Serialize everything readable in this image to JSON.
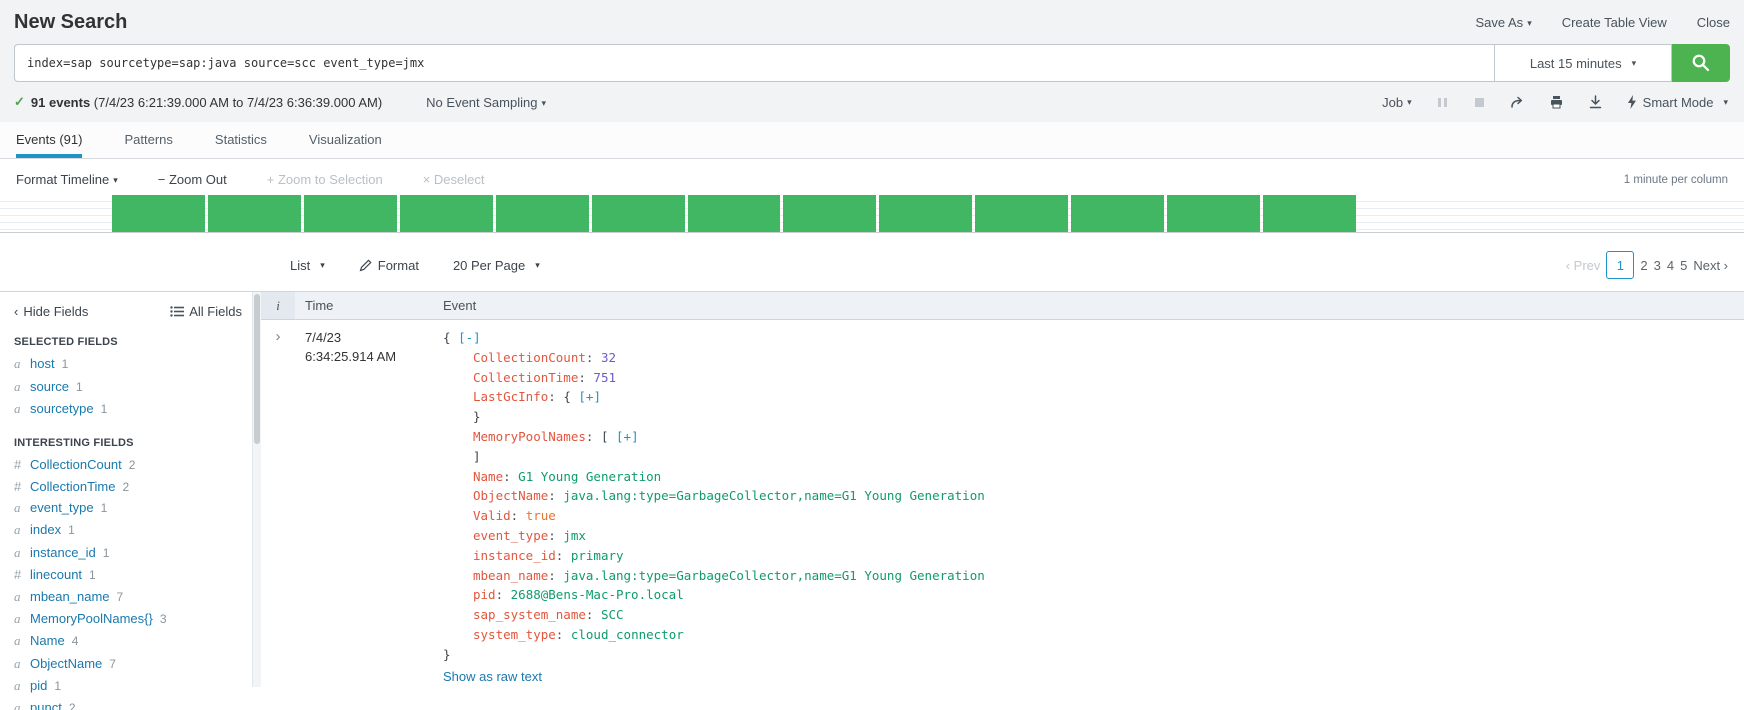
{
  "icons": {
    "caret": "▾",
    "check": "✓",
    "prev_chevron": "‹",
    "expand_chevron": "›",
    "hide_chevron": "‹"
  },
  "header": {
    "title": "New Search",
    "save_as": "Save As",
    "create_table_view": "Create Table View",
    "close": "Close"
  },
  "search_bar": {
    "query": "index=sap sourcetype=sap:java source=scc event_type=jmx",
    "time_range": "Last 15 minutes"
  },
  "job_bar": {
    "events_summary": "91 events",
    "time_span": "(7/4/23 6:21:39.000 AM to 7/4/23 6:36:39.000 AM)",
    "sampling": "No Event Sampling",
    "job_label": "Job",
    "smart_mode": "Smart Mode"
  },
  "tabs": {
    "events": "Events (91)",
    "patterns": "Patterns",
    "statistics": "Statistics",
    "visualization": "Visualization"
  },
  "timeline": {
    "format_label": "Format Timeline",
    "zoom_out": "− Zoom Out",
    "zoom_to_selection": "+ Zoom to Selection",
    "deselect": "× Deselect",
    "scale_label": "1 minute per column",
    "columns": 13,
    "bar_color": "#41b663"
  },
  "results_toolbar": {
    "list_label": "List",
    "format_label": "Format",
    "per_page_label": "20 Per Page"
  },
  "pagination": {
    "prev": "‹ Prev",
    "pages": [
      "1",
      "2",
      "3",
      "4",
      "5"
    ],
    "next": "Next ›"
  },
  "fields_sidebar": {
    "hide_fields": "Hide Fields",
    "all_fields": "All Fields",
    "selected_title": "SELECTED FIELDS",
    "selected": [
      {
        "type": "a",
        "name": "host",
        "count": "1"
      },
      {
        "type": "a",
        "name": "source",
        "count": "1"
      },
      {
        "type": "a",
        "name": "sourcetype",
        "count": "1"
      }
    ],
    "interesting_title": "INTERESTING FIELDS",
    "interesting": [
      {
        "type": "#",
        "name": "CollectionCount",
        "count": "2"
      },
      {
        "type": "#",
        "name": "CollectionTime",
        "count": "2"
      },
      {
        "type": "a",
        "name": "event_type",
        "count": "1"
      },
      {
        "type": "a",
        "name": "index",
        "count": "1"
      },
      {
        "type": "a",
        "name": "instance_id",
        "count": "1"
      },
      {
        "type": "#",
        "name": "linecount",
        "count": "1"
      },
      {
        "type": "a",
        "name": "mbean_name",
        "count": "7"
      },
      {
        "type": "a",
        "name": "MemoryPoolNames{}",
        "count": "3"
      },
      {
        "type": "a",
        "name": "Name",
        "count": "4"
      },
      {
        "type": "a",
        "name": "ObjectName",
        "count": "7"
      },
      {
        "type": "a",
        "name": "pid",
        "count": "1"
      },
      {
        "type": "a",
        "name": "punct",
        "count": "2"
      }
    ]
  },
  "events_table": {
    "columns": {
      "info": "i",
      "time": "Time",
      "event": "Event"
    },
    "row": {
      "date": "7/4/23",
      "time": "6:34:25.914 AM"
    },
    "json_lines": [
      {
        "open": "{ ",
        "toggle": "[-]"
      },
      {
        "key": "CollectionCount",
        "value": "32"
      },
      {
        "key": "CollectionTime",
        "value": "751"
      },
      {
        "key": "LastGcInfo",
        "open": "{ ",
        "toggle": "[+]"
      },
      {
        "close": "}"
      },
      {
        "key": "MemoryPoolNames",
        "open": "[ ",
        "toggle": "[+]"
      },
      {
        "close": "]"
      },
      {
        "key": "Name",
        "value": "G1 Young Generation"
      },
      {
        "key": "ObjectName",
        "value": "java.lang:type=GarbageCollector,name=G1 Young Generation"
      },
      {
        "key": "Valid",
        "value": "true"
      },
      {
        "key": "event_type",
        "value": "jmx"
      },
      {
        "key": "instance_id",
        "value": "primary"
      },
      {
        "key": "mbean_name",
        "value": "java.lang:type=GarbageCollector,name=G1 Young Generation"
      },
      {
        "key": "pid",
        "value": "2688@Bens-Mac-Pro.local"
      },
      {
        "key": "sap_system_name",
        "value": "SCC"
      },
      {
        "key": "system_type",
        "value": "cloud_connector"
      },
      {
        "close": "}"
      }
    ],
    "raw_link": "Show as raw text"
  }
}
